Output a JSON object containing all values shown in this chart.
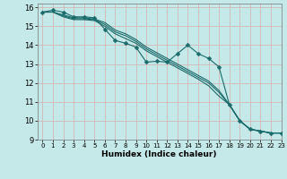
{
  "title": "",
  "xlabel": "Humidex (Indice chaleur)",
  "ylabel": "",
  "background_color": "#c5e8e8",
  "grid_color": "#d4b8b8",
  "line_color": "#1a6b6b",
  "xlim": [
    -0.5,
    23
  ],
  "ylim": [
    9,
    16.2
  ],
  "xticks": [
    0,
    1,
    2,
    3,
    4,
    5,
    6,
    7,
    8,
    9,
    10,
    11,
    12,
    13,
    14,
    15,
    16,
    17,
    18,
    19,
    20,
    21,
    22,
    23
  ],
  "yticks": [
    9,
    10,
    11,
    12,
    13,
    14,
    15,
    16
  ],
  "series_smooth": [
    [
      15.75,
      15.75,
      15.55,
      15.4,
      15.4,
      15.35,
      15.1,
      14.7,
      14.5,
      14.2,
      13.8,
      13.5,
      13.2,
      12.9,
      12.6,
      12.3,
      12.0,
      11.5,
      10.85,
      10.0,
      9.55,
      9.45,
      9.35,
      9.35
    ],
    [
      15.75,
      15.75,
      15.5,
      15.35,
      15.35,
      15.3,
      15.0,
      14.6,
      14.35,
      14.1,
      13.7,
      13.4,
      13.1,
      12.8,
      12.5,
      12.2,
      11.85,
      11.3,
      10.85,
      10.0,
      9.55,
      9.45,
      9.35,
      9.35
    ],
    [
      15.75,
      15.75,
      15.6,
      15.45,
      15.45,
      15.38,
      15.2,
      14.8,
      14.6,
      14.3,
      13.9,
      13.6,
      13.3,
      13.0,
      12.7,
      12.4,
      12.1,
      11.6,
      10.85,
      10.0,
      9.55,
      9.45,
      9.35,
      9.35
    ]
  ],
  "series_jagged": [
    15.75,
    15.85,
    15.75,
    15.5,
    15.5,
    15.45,
    14.85,
    14.25,
    14.1,
    13.9,
    13.1,
    13.15,
    13.1,
    13.55,
    14.0,
    13.55,
    13.3,
    12.85,
    10.85,
    10.0,
    9.55,
    9.45,
    9.35,
    9.35
  ],
  "marker": "D",
  "marker_size": 2.5
}
